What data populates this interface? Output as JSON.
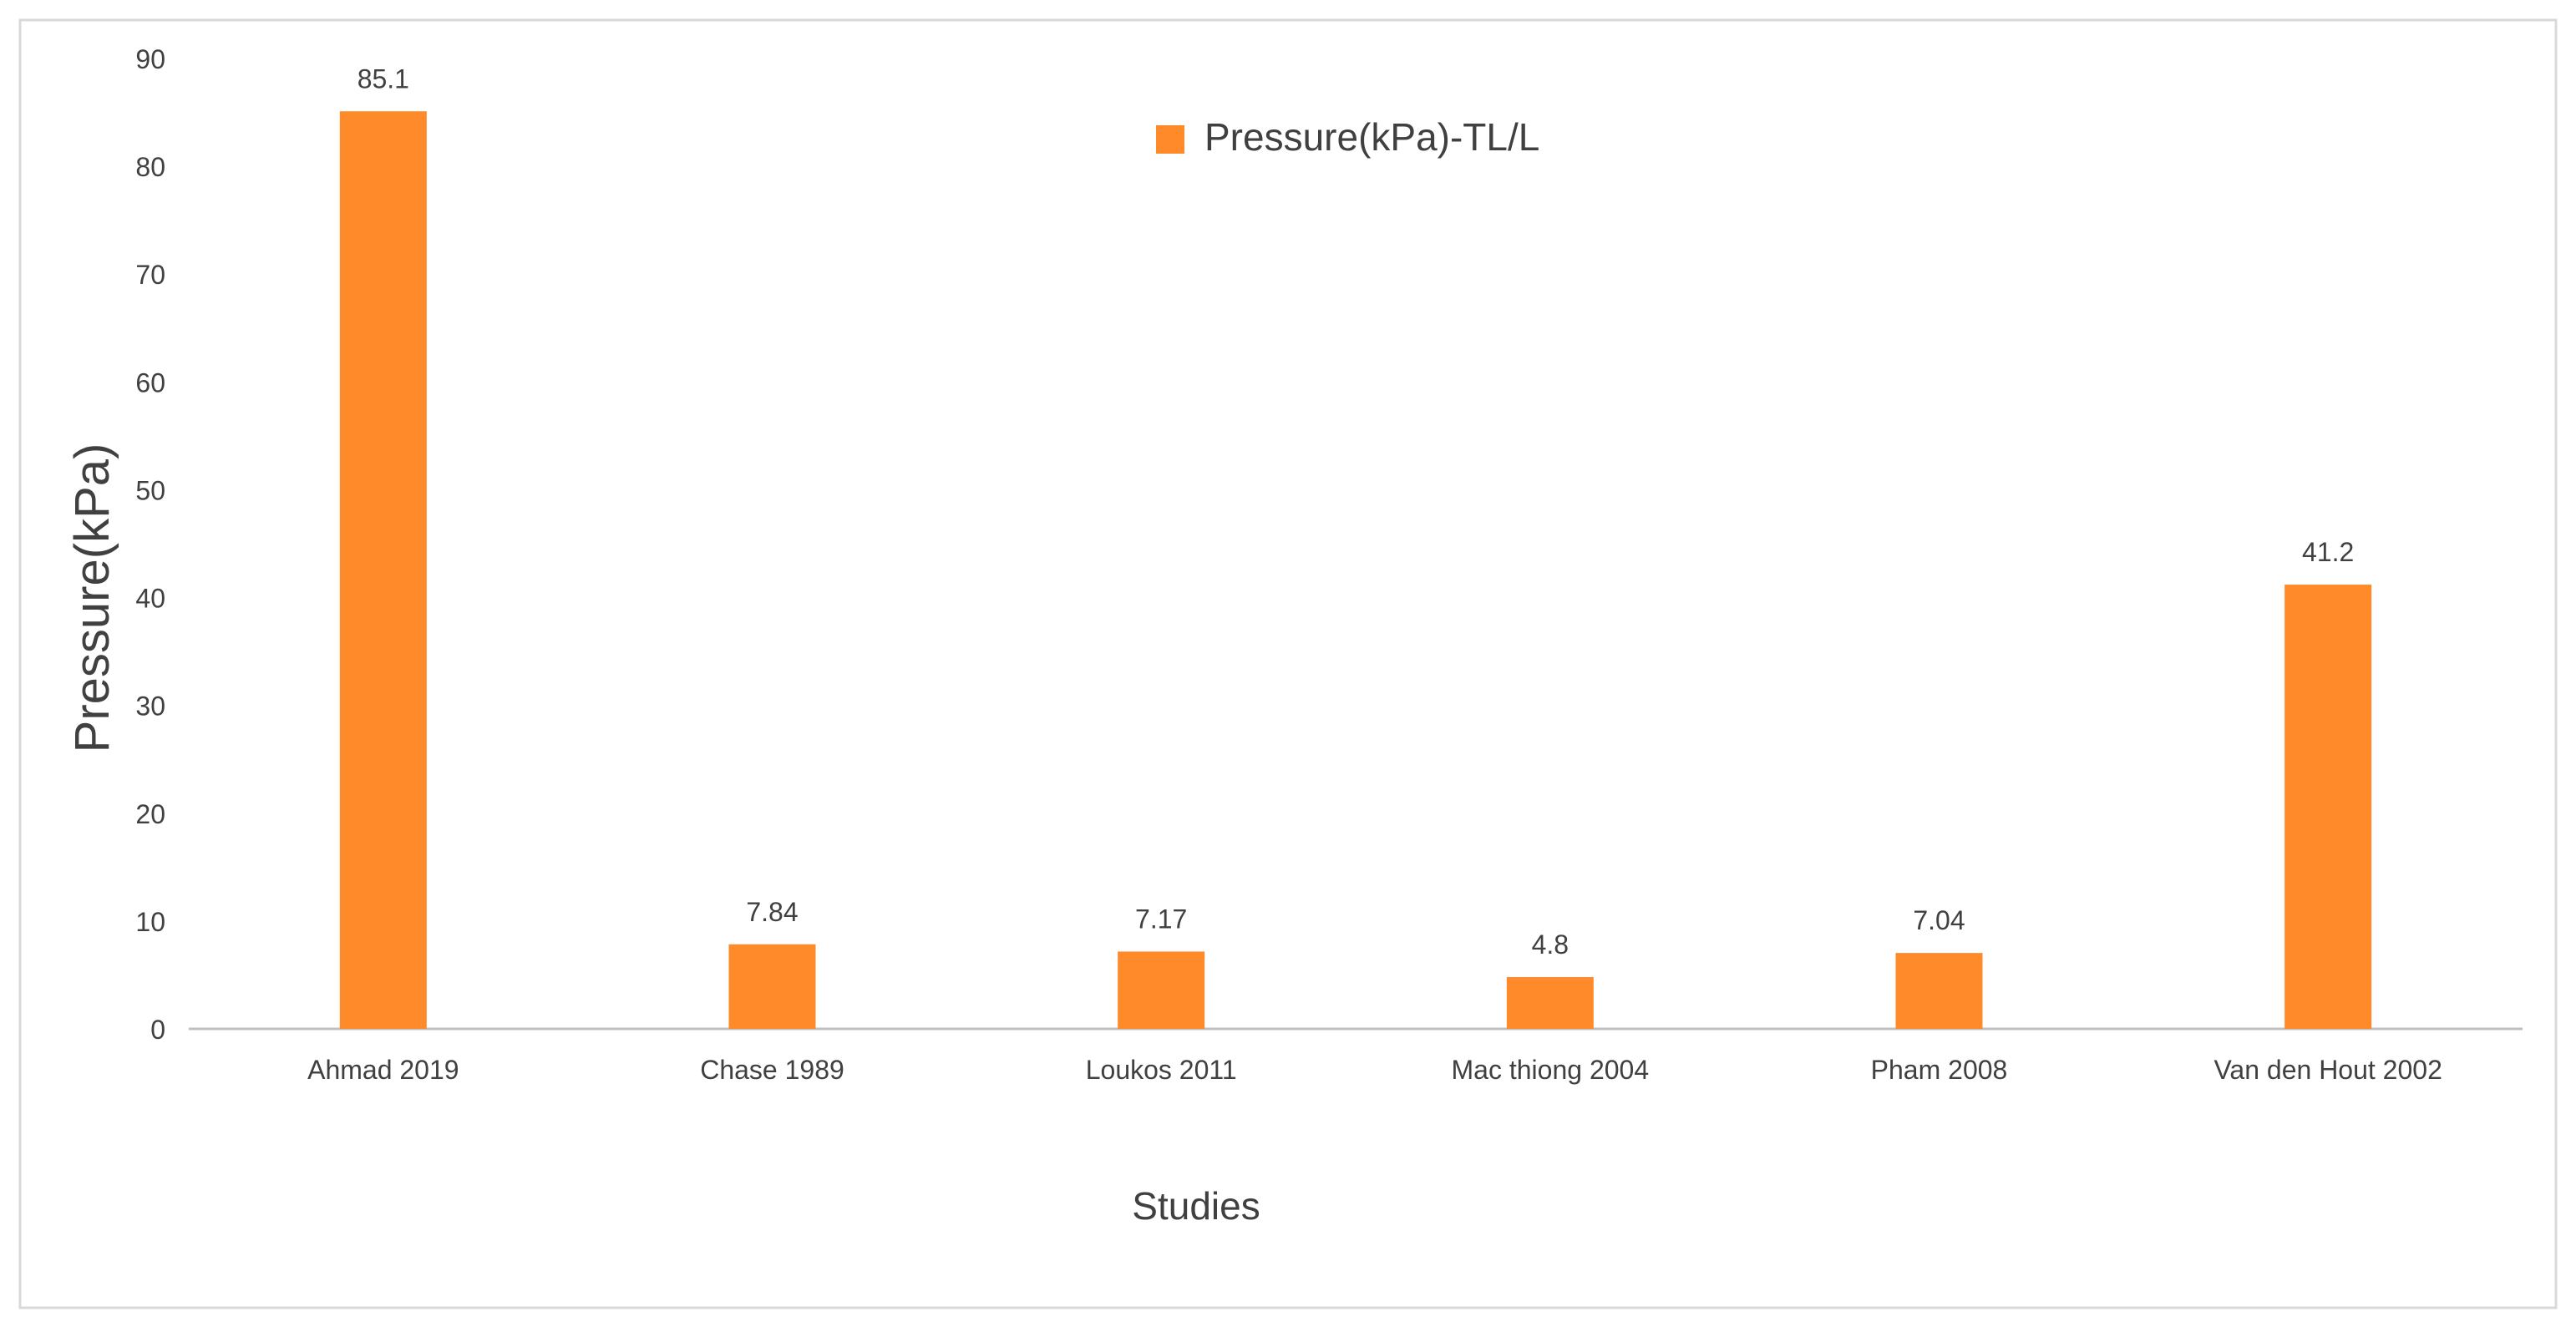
{
  "chart_data": {
    "type": "bar",
    "title": "",
    "xlabel": "Studies",
    "ylabel": "Pressure(kPa)",
    "categories": [
      "Ahmad 2019",
      "Chase 1989",
      "Loukos 2011",
      "Mac thiong 2004",
      "Pham 2008",
      "Van den Hout 2002"
    ],
    "series": [
      {
        "name": "Pressure(kPa)-TL/L",
        "values": [
          85.1,
          7.84,
          7.17,
          4.8,
          7.04,
          41.2
        ],
        "labels": [
          "85.1",
          "7.84",
          "7.17",
          "4.8",
          "7.04",
          "41.2"
        ],
        "color": "#ff8a2a"
      }
    ],
    "ylim": [
      0,
      90
    ],
    "yticks": [
      0,
      10,
      20,
      30,
      40,
      50,
      60,
      70,
      80,
      90
    ],
    "grid": false,
    "legend_position": "top-center"
  },
  "colors": {
    "bar": "#ff8a2a",
    "frame": "#d9d9d9",
    "axis": "#bfbfbf",
    "tick_text": "#404040",
    "label_text": "#404040"
  }
}
